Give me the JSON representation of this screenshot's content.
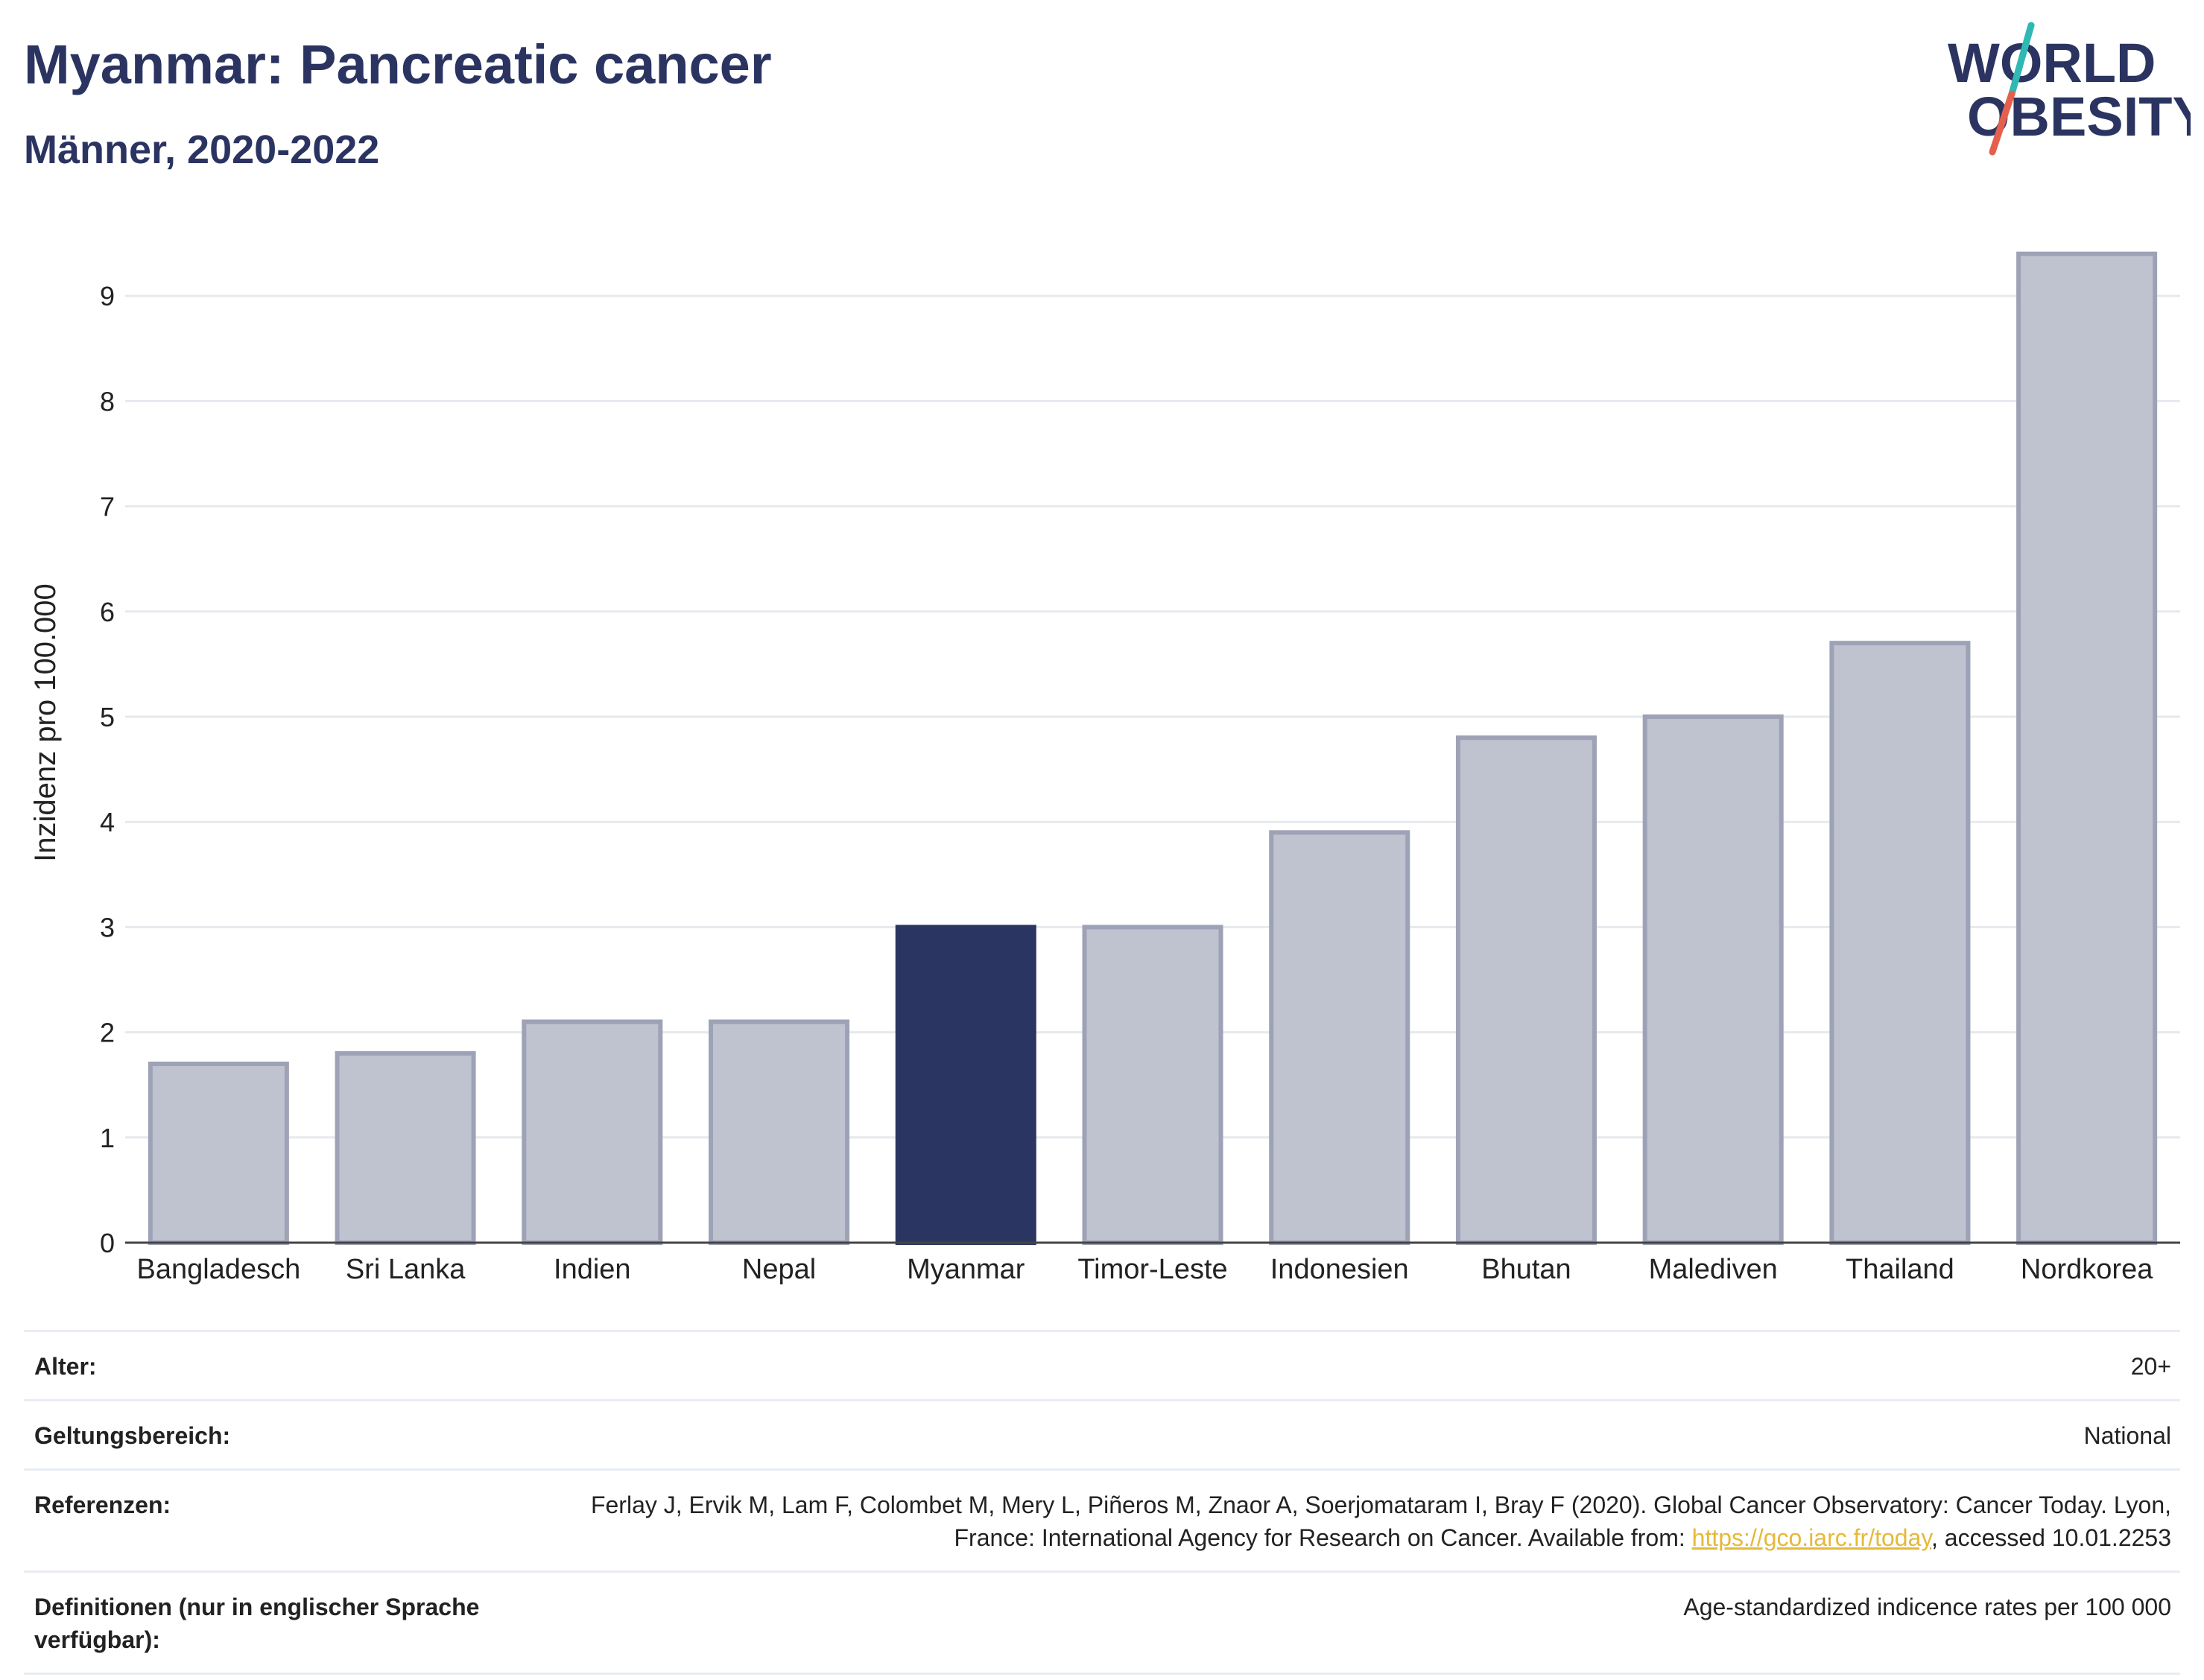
{
  "header": {
    "title": "Myanmar: Pancreatic cancer",
    "subtitle": "Männer, 2020-2022"
  },
  "logo": {
    "line1": "WORLD",
    "line2": "OBESITY"
  },
  "colors": {
    "highlight_bar": "#2b3561",
    "other_bar_fill": "#bfc2cf",
    "other_bar_stroke": "#9ea2b6",
    "title": "#2b3461",
    "logo_slash_top": "#2fb8b4",
    "logo_slash_bottom": "#e4604d",
    "link": "#e5b93a"
  },
  "chart_data": {
    "type": "bar",
    "categories": [
      "Bangladesch",
      "Sri Lanka",
      "Indien",
      "Nepal",
      "Myanmar",
      "Timor-Leste",
      "Indonesien",
      "Bhutan",
      "Malediven",
      "Thailand",
      "Nordkorea"
    ],
    "values": [
      1.7,
      1.8,
      2.1,
      2.1,
      3.0,
      3.0,
      3.9,
      4.8,
      5.0,
      5.7,
      9.4
    ],
    "highlight": "Myanmar",
    "ylabel": "Inzidenz pro 100.000",
    "ylim": [
      0,
      9.6
    ],
    "yticks": [
      0,
      1,
      2,
      3,
      4,
      5,
      6,
      7,
      8,
      9
    ],
    "grid": true
  },
  "meta": {
    "age_label": "Alter:",
    "age_value": "20+",
    "scope_label": "Geltungsbereich:",
    "scope_value": "National",
    "ref_label": "Referenzen:",
    "ref_text_before": "Ferlay J, Ervik M, Lam F, Colombet M, Mery L, Piñeros M, Znaor A, Soerjomataram I, Bray F (2020). Global Cancer Observatory: Cancer Today. Lyon, France: International Agency for Research on Cancer. Available from: ",
    "ref_link": "https://gco.iarc.fr/today",
    "ref_text_after": ", accessed 10.01.2253",
    "def_label": "Definitionen (nur in englischer Sprache verfügbar):",
    "def_value": "Age-standardized indicence rates per 100 000"
  }
}
